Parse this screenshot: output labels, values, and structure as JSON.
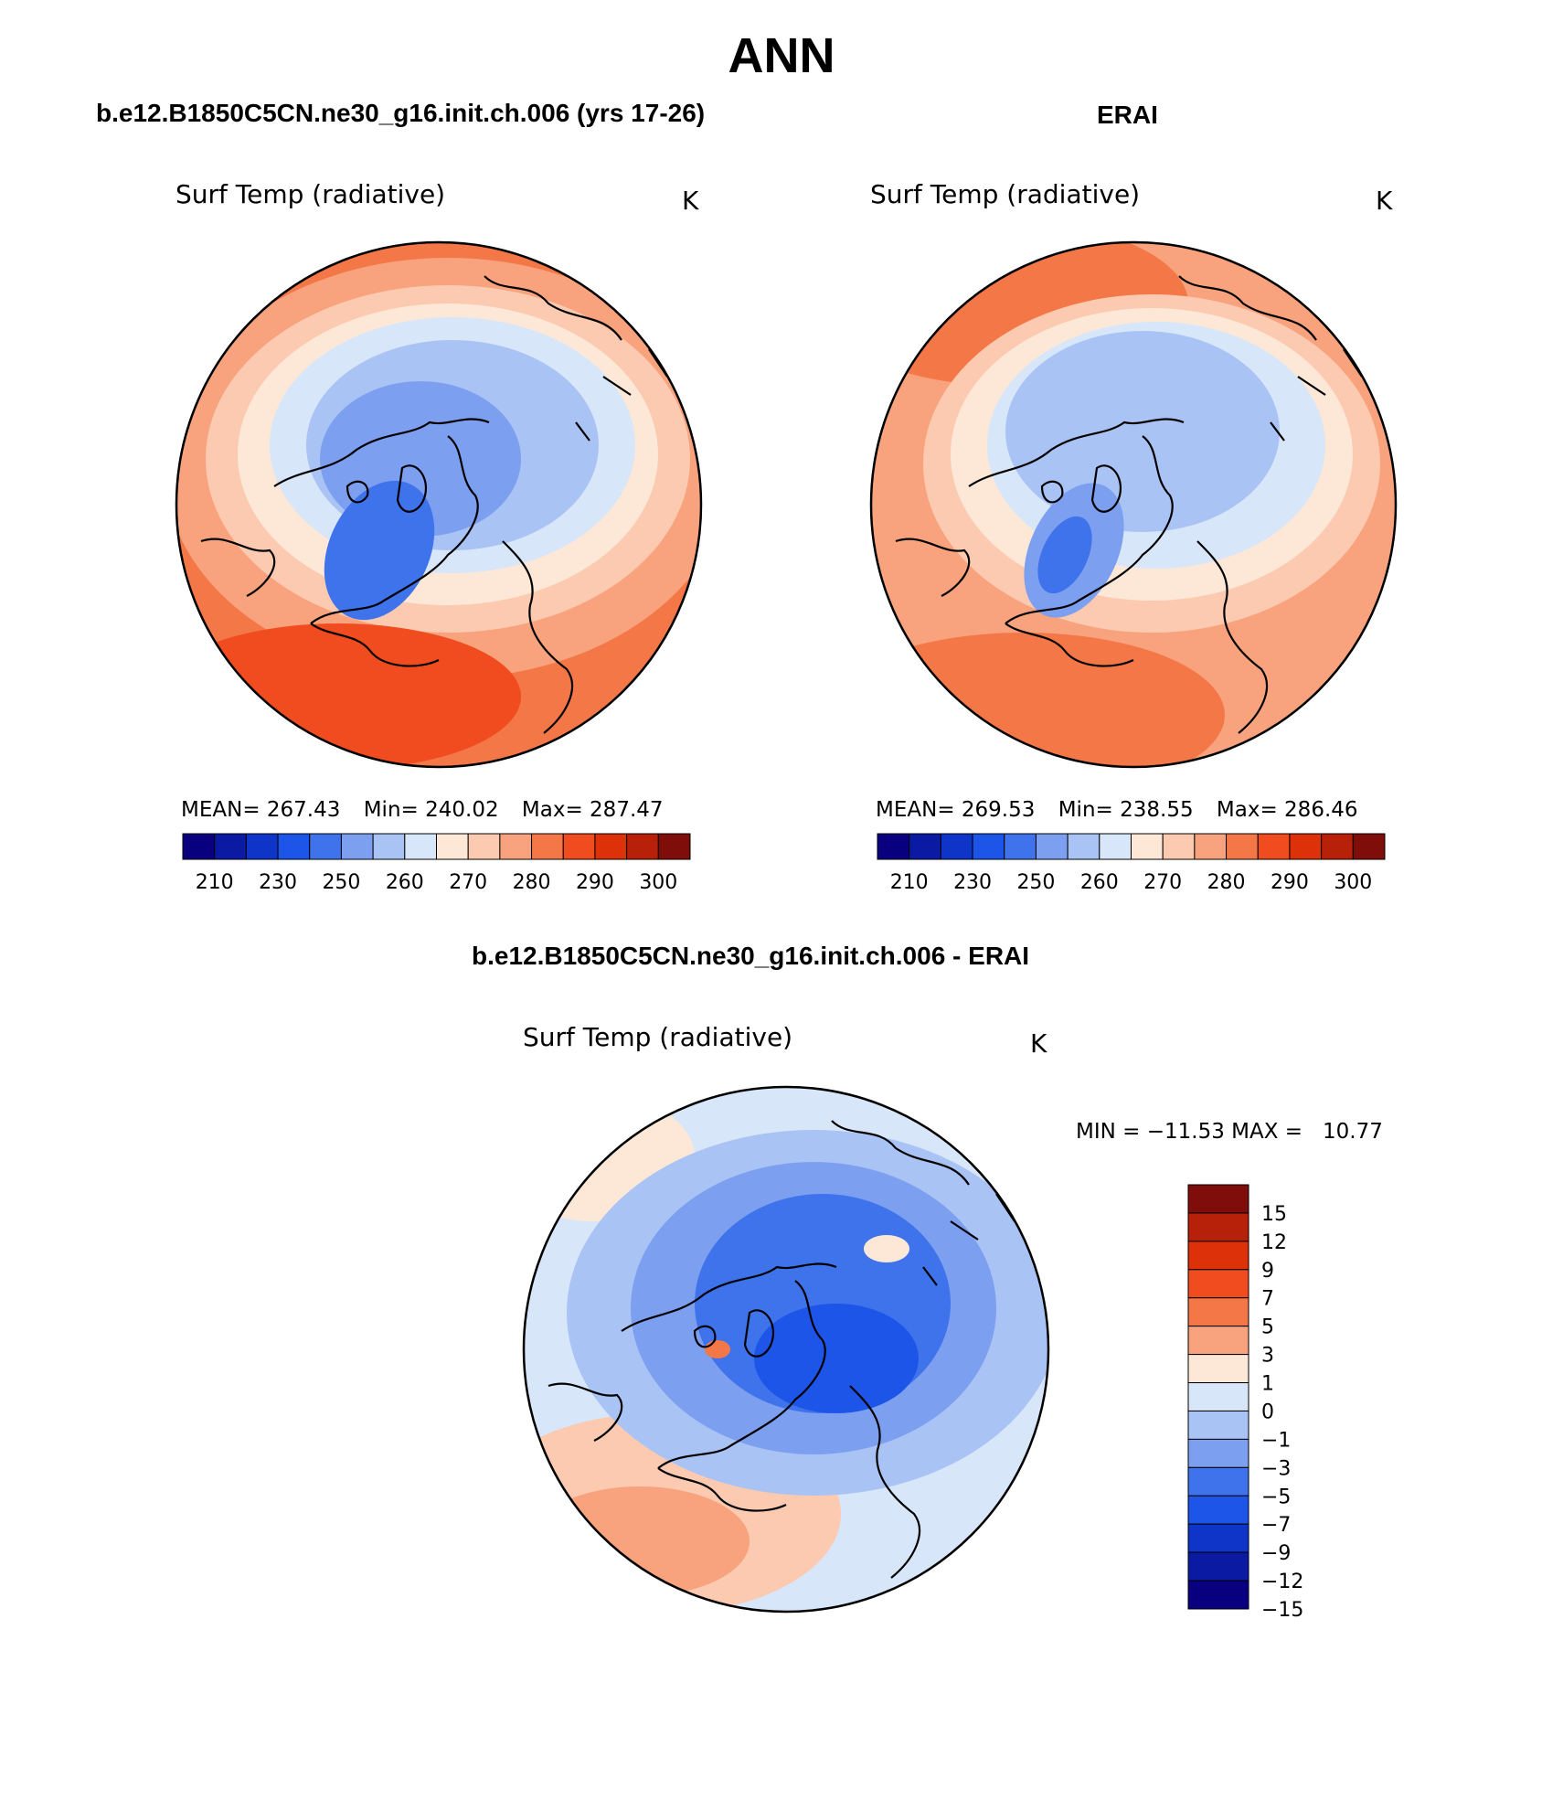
{
  "main_title": "ANN",
  "chart_data": [
    {
      "type": "heatmap",
      "projection": "north-polar-stereographic",
      "panel_title": "b.e12.B1850C5CN.ne30_g16.init.ch.006 (yrs 17-26)",
      "variable_label": "Surf Temp (radiative)",
      "units": "K",
      "stats": {
        "mean_label": "MEAN=",
        "mean": "267.43",
        "min_label": "Min=",
        "min": "240.02",
        "max_label": "Max=",
        "max": "287.47"
      },
      "colorbar": {
        "orientation": "horizontal",
        "colors": [
          "#08007f",
          "#0b1aa3",
          "#0e35c8",
          "#1c55e8",
          "#3f73ec",
          "#7d9ff0",
          "#a9c3f5",
          "#d7e6f9",
          "#fde8d7",
          "#fbcab0",
          "#f8a37d",
          "#f47747",
          "#f14c1f",
          "#dd3109",
          "#b7210a",
          "#7f0d0a"
        ],
        "tick_labels": [
          "210",
          "230",
          "250",
          "260",
          "270",
          "280",
          "290",
          "300"
        ]
      }
    },
    {
      "type": "heatmap",
      "projection": "north-polar-stereographic",
      "panel_title": "ERAI",
      "variable_label": "Surf Temp (radiative)",
      "units": "K",
      "stats": {
        "mean_label": "MEAN=",
        "mean": "269.53",
        "min_label": "Min=",
        "min": "238.55",
        "max_label": "Max=",
        "max": "286.46"
      },
      "colorbar": {
        "orientation": "horizontal",
        "colors": [
          "#08007f",
          "#0b1aa3",
          "#0e35c8",
          "#1c55e8",
          "#3f73ec",
          "#7d9ff0",
          "#a9c3f5",
          "#d7e6f9",
          "#fde8d7",
          "#fbcab0",
          "#f8a37d",
          "#f47747",
          "#f14c1f",
          "#dd3109",
          "#b7210a",
          "#7f0d0a"
        ],
        "tick_labels": [
          "210",
          "230",
          "250",
          "260",
          "270",
          "280",
          "290",
          "300"
        ]
      }
    },
    {
      "type": "heatmap",
      "projection": "north-polar-stereographic",
      "panel_title": "b.e12.B1850C5CN.ne30_g16.init.ch.006 - ERAI",
      "variable_label": "Surf Temp (radiative)",
      "units": "K",
      "stats": {
        "text": "MIN = −11.53 MAX =   10.77"
      },
      "colorbar": {
        "orientation": "vertical",
        "colors": [
          "#7f0d0a",
          "#b7210a",
          "#dd3109",
          "#f14c1f",
          "#f47747",
          "#f8a37d",
          "#fde8d7",
          "#d7e6f9",
          "#a9c3f5",
          "#7d9ff0",
          "#3f73ec",
          "#1c55e8",
          "#0e35c8",
          "#0b1aa3",
          "#08007f"
        ],
        "tick_labels": [
          "15",
          "12",
          "9",
          "7",
          "5",
          "3",
          "1",
          "0",
          "−1",
          "−3",
          "−5",
          "−7",
          "−9",
          "−12",
          "−15"
        ]
      }
    }
  ],
  "map_colors": {
    "warm_far": "#f14c1f",
    "warm": "#f47747",
    "warm_mid": "#f8a37d",
    "warm_light": "#fbcab0",
    "neutral": "#fde8d7",
    "cool_light": "#d7e6f9",
    "cool": "#a9c3f5",
    "cool_mid": "#7d9ff0",
    "cold": "#3f73ec",
    "colder": "#1c55e8",
    "land": "#000000"
  }
}
